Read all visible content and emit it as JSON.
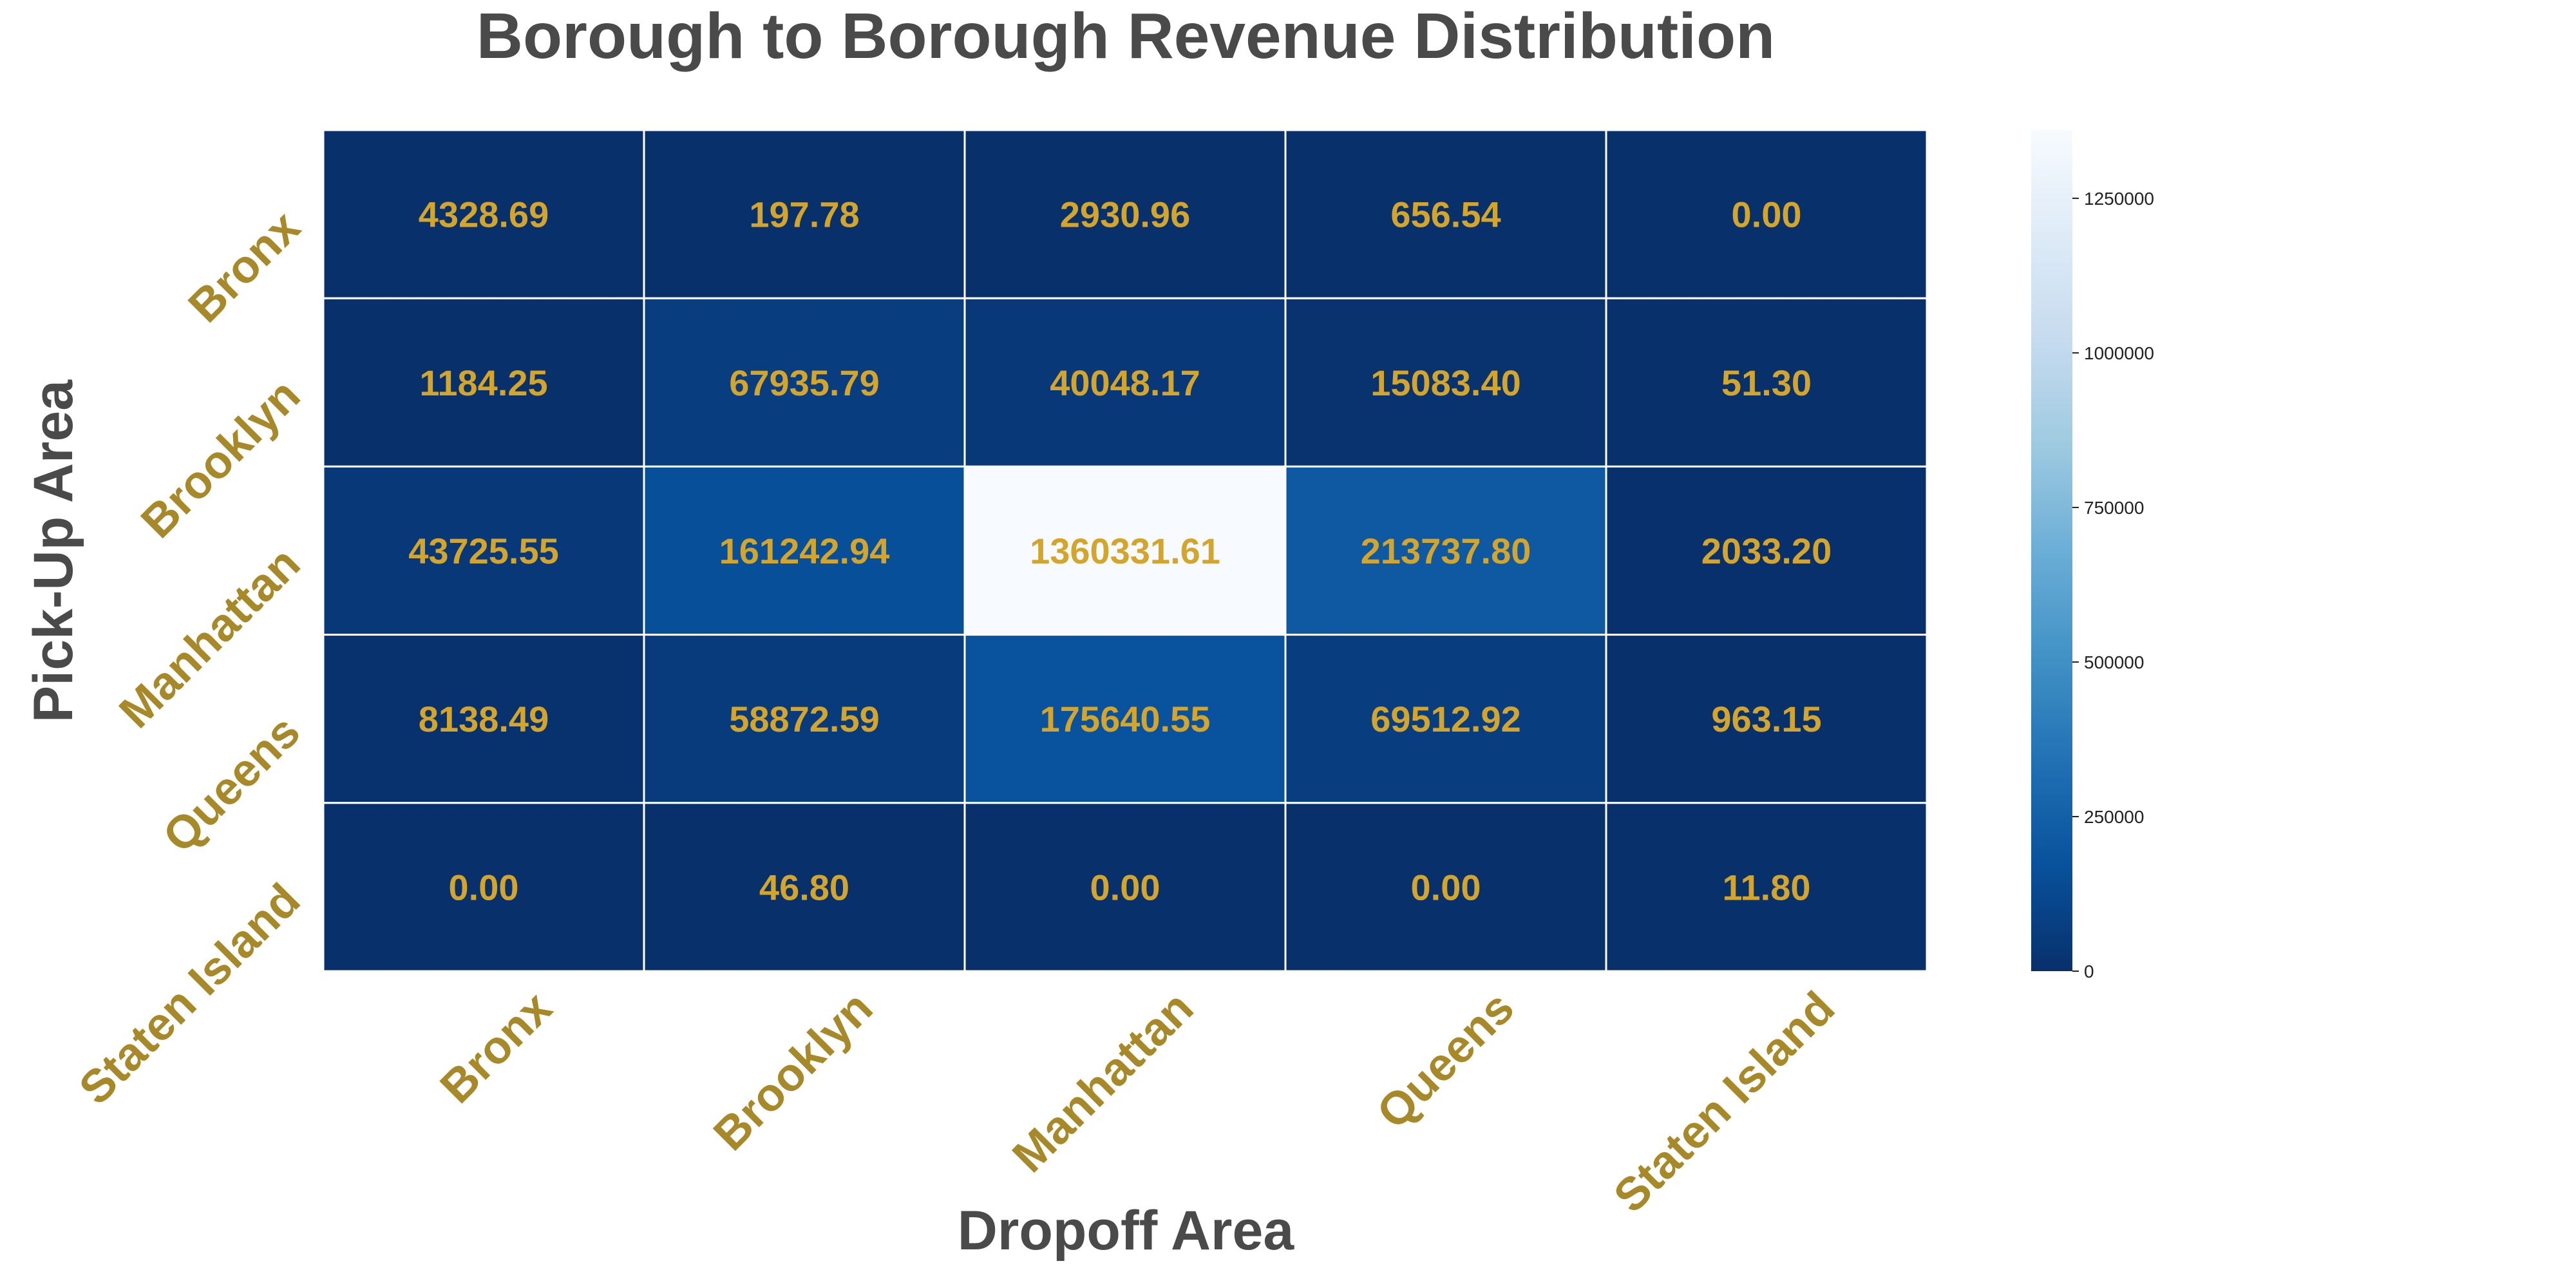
{
  "chart_data": {
    "type": "heatmap",
    "title": "Borough to Borough Revenue Distribution",
    "xlabel": "Dropoff Area",
    "ylabel": "Pick-Up Area",
    "x_categories": [
      "Bronx",
      "Brooklyn",
      "Manhattan",
      "Queens",
      "Staten Island"
    ],
    "y_categories": [
      "Bronx",
      "Brooklyn",
      "Manhattan",
      "Queens",
      "Staten Island"
    ],
    "values": [
      [
        4328.69,
        197.78,
        2930.96,
        656.54,
        0.0
      ],
      [
        1184.25,
        67935.79,
        40048.17,
        15083.4,
        51.3
      ],
      [
        43725.55,
        161242.94,
        1360331.61,
        213737.8,
        2033.2
      ],
      [
        8138.49,
        58872.59,
        175640.55,
        69512.92,
        963.15
      ],
      [
        0.0,
        46.8,
        0.0,
        0.0,
        11.8
      ]
    ],
    "value_labels": [
      [
        "4328.69",
        "197.78",
        "2930.96",
        "656.54",
        "0.00"
      ],
      [
        "1184.25",
        "67935.79",
        "40048.17",
        "15083.40",
        "51.30"
      ],
      [
        "43725.55",
        "161242.94",
        "1360331.61",
        "213737.80",
        "2033.20"
      ],
      [
        "8138.49",
        "58872.59",
        "175640.55",
        "69512.92",
        "963.15"
      ],
      [
        "0.00",
        "46.80",
        "0.00",
        "0.00",
        "11.80"
      ]
    ],
    "colormap": "Blues_r",
    "colorbar": {
      "range": [
        0,
        1360331.61
      ],
      "ticks": [
        0,
        250000,
        500000,
        750000,
        1000000,
        1250000
      ],
      "tick_labels": [
        "0",
        "250000",
        "500000",
        "750000",
        "1000000",
        "1250000"
      ]
    },
    "colors": {
      "title": "#4a4a4a",
      "tick_labels": "#a8892a",
      "cell_labels": "#d4a52c",
      "cell_border": "#ffffff"
    }
  }
}
